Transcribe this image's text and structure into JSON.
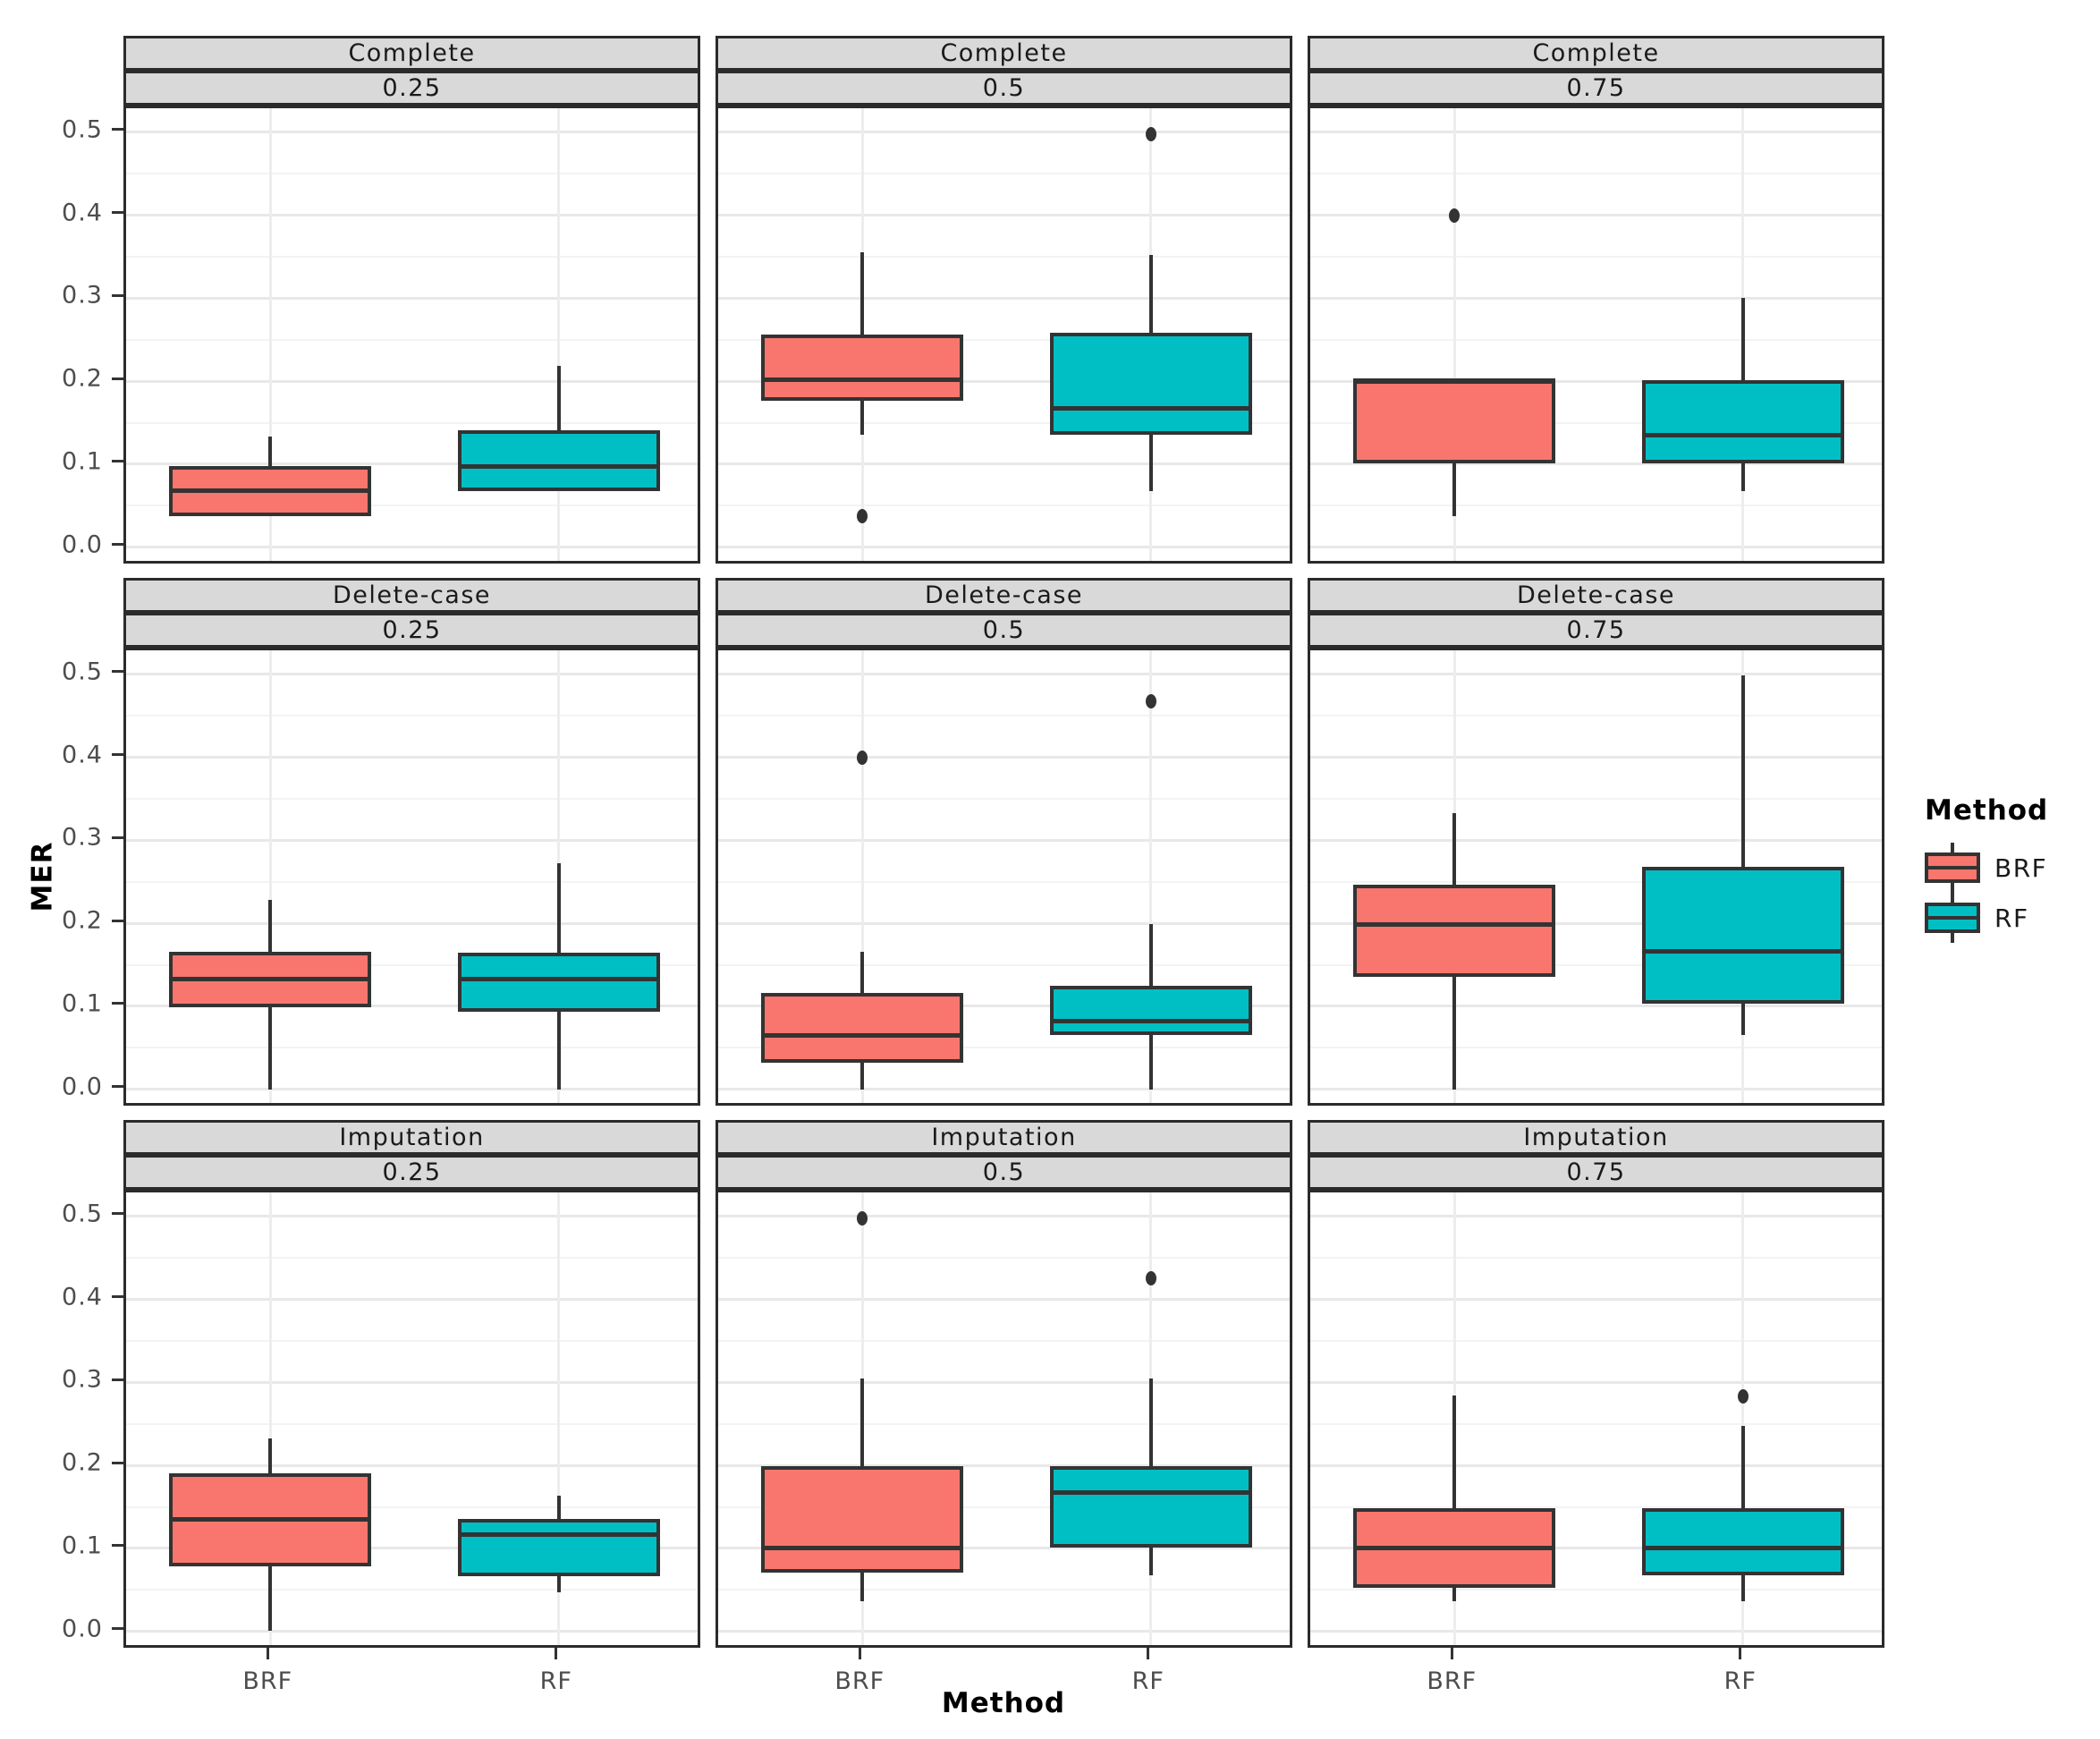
{
  "figure": {
    "ylabel": "MER",
    "xlabel": "Method"
  },
  "legend": {
    "title": "Method",
    "entries": [
      {
        "label": "BRF",
        "color": "#F8766D"
      },
      {
        "label": "RF",
        "color": "#00BFC4"
      }
    ]
  },
  "axes": {
    "yticklabels": [
      "0.0",
      "0.1",
      "0.2",
      "0.3",
      "0.4",
      "0.5"
    ],
    "xticklabels": [
      "BRF",
      "RF"
    ]
  },
  "chart_data": {
    "type": "boxplot",
    "title": "",
    "xlabel": "Method",
    "ylabel": "MER",
    "facet_rows": [
      "Complete",
      "Delete-case",
      "Imputation"
    ],
    "facet_cols": [
      "0.25",
      "0.5",
      "0.75"
    ],
    "categories": [
      "BRF",
      "RF"
    ],
    "colors": {
      "BRF": "#F8766D",
      "RF": "#00BFC4"
    },
    "ylim": [
      -0.023,
      0.529
    ],
    "yticks": [
      0.0,
      0.1,
      0.2,
      0.3,
      0.4,
      0.5
    ],
    "minor_yticks": [
      0.05,
      0.15,
      0.25,
      0.35,
      0.45
    ],
    "grid": true,
    "legend_position": "right",
    "facets": [
      {
        "row": "Complete",
        "col": "0.25",
        "boxes": [
          {
            "group": "BRF",
            "whislo": 0.037,
            "q1": 0.037,
            "med": 0.068,
            "q3": 0.098,
            "whishi": 0.133,
            "outliers": []
          },
          {
            "group": "RF",
            "whislo": 0.068,
            "q1": 0.068,
            "med": 0.097,
            "q3": 0.141,
            "whishi": 0.218,
            "outliers": []
          }
        ]
      },
      {
        "row": "Complete",
        "col": "0.5",
        "boxes": [
          {
            "group": "BRF",
            "whislo": 0.135,
            "q1": 0.176,
            "med": 0.202,
            "q3": 0.256,
            "whishi": 0.355,
            "outliers": [
              0.037
            ]
          },
          {
            "group": "RF",
            "whislo": 0.068,
            "q1": 0.135,
            "med": 0.167,
            "q3": 0.258,
            "whishi": 0.352,
            "outliers": [
              0.498
            ]
          }
        ]
      },
      {
        "row": "Complete",
        "col": "0.75",
        "boxes": [
          {
            "group": "BRF",
            "whislo": 0.037,
            "q1": 0.101,
            "med": 0.201,
            "q3": 0.201,
            "whishi": 0.201,
            "outliers": [
              0.4
            ]
          },
          {
            "group": "RF",
            "whislo": 0.068,
            "q1": 0.101,
            "med": 0.135,
            "q3": 0.201,
            "whishi": 0.3,
            "outliers": []
          }
        ]
      },
      {
        "row": "Delete-case",
        "col": "0.25",
        "boxes": [
          {
            "group": "BRF",
            "whislo": 0.0,
            "q1": 0.099,
            "med": 0.133,
            "q3": 0.166,
            "whishi": 0.228,
            "outliers": []
          },
          {
            "group": "RF",
            "whislo": 0.0,
            "q1": 0.093,
            "med": 0.133,
            "q3": 0.165,
            "whishi": 0.272,
            "outliers": []
          }
        ]
      },
      {
        "row": "Delete-case",
        "col": "0.5",
        "boxes": [
          {
            "group": "BRF",
            "whislo": 0.0,
            "q1": 0.032,
            "med": 0.065,
            "q3": 0.116,
            "whishi": 0.166,
            "outliers": [
              0.4
            ]
          },
          {
            "group": "RF",
            "whislo": 0.0,
            "q1": 0.065,
            "med": 0.082,
            "q3": 0.125,
            "whishi": 0.199,
            "outliers": [
              0.468
            ]
          }
        ]
      },
      {
        "row": "Delete-case",
        "col": "0.75",
        "boxes": [
          {
            "group": "BRF",
            "whislo": 0.0,
            "q1": 0.135,
            "med": 0.199,
            "q3": 0.246,
            "whishi": 0.333,
            "outliers": []
          },
          {
            "group": "RF",
            "whislo": 0.065,
            "q1": 0.103,
            "med": 0.166,
            "q3": 0.268,
            "whishi": 0.499,
            "outliers": []
          }
        ]
      },
      {
        "row": "Imputation",
        "col": "0.25",
        "boxes": [
          {
            "group": "BRF",
            "whislo": 0.001,
            "q1": 0.078,
            "med": 0.135,
            "q3": 0.19,
            "whishi": 0.232,
            "outliers": []
          },
          {
            "group": "RF",
            "whislo": 0.047,
            "q1": 0.067,
            "med": 0.117,
            "q3": 0.135,
            "whishi": 0.164,
            "outliers": []
          }
        ]
      },
      {
        "row": "Imputation",
        "col": "0.5",
        "boxes": [
          {
            "group": "BRF",
            "whislo": 0.036,
            "q1": 0.071,
            "med": 0.1,
            "q3": 0.199,
            "whishi": 0.305,
            "outliers": [
              0.498
            ]
          },
          {
            "group": "RF",
            "whislo": 0.068,
            "q1": 0.101,
            "med": 0.167,
            "q3": 0.199,
            "whishi": 0.305,
            "outliers": [
              0.425
            ]
          }
        ]
      },
      {
        "row": "Imputation",
        "col": "0.75",
        "boxes": [
          {
            "group": "BRF",
            "whislo": 0.036,
            "q1": 0.052,
            "med": 0.1,
            "q3": 0.148,
            "whishi": 0.284,
            "outliers": []
          },
          {
            "group": "RF",
            "whislo": 0.036,
            "q1": 0.068,
            "med": 0.1,
            "q3": 0.148,
            "whishi": 0.248,
            "outliers": [
              0.283
            ]
          }
        ]
      }
    ]
  }
}
